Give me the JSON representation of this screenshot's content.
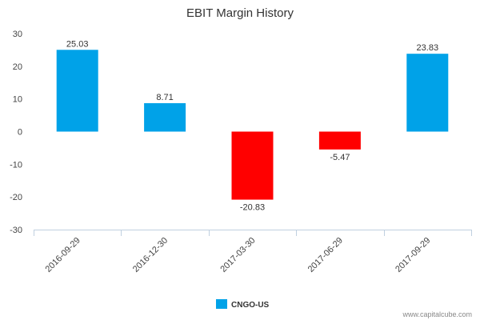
{
  "chart_data": {
    "type": "bar",
    "title": "EBIT Margin History",
    "categories": [
      "2016-09-29",
      "2016-12-30",
      "2017-03-30",
      "2017-06-29",
      "2017-09-29"
    ],
    "series": [
      {
        "name": "CNGO-US",
        "values": [
          25.03,
          8.71,
          -20.83,
          -5.47,
          23.83
        ]
      }
    ],
    "data_labels": [
      "25.03",
      "8.71",
      "-20.83",
      "-5.47",
      "23.83"
    ],
    "ylim": [
      -30,
      30
    ],
    "yticks": [
      30,
      20,
      10,
      0,
      -10,
      -20,
      -30
    ],
    "xlabel": "",
    "ylabel": "",
    "grid": false,
    "legend_position": "bottom-center",
    "colors": {
      "positive": "#00A2E8",
      "negative": "#FF0000",
      "axis": "#C0D0E0"
    }
  },
  "credit": "www.capitalcube.com"
}
